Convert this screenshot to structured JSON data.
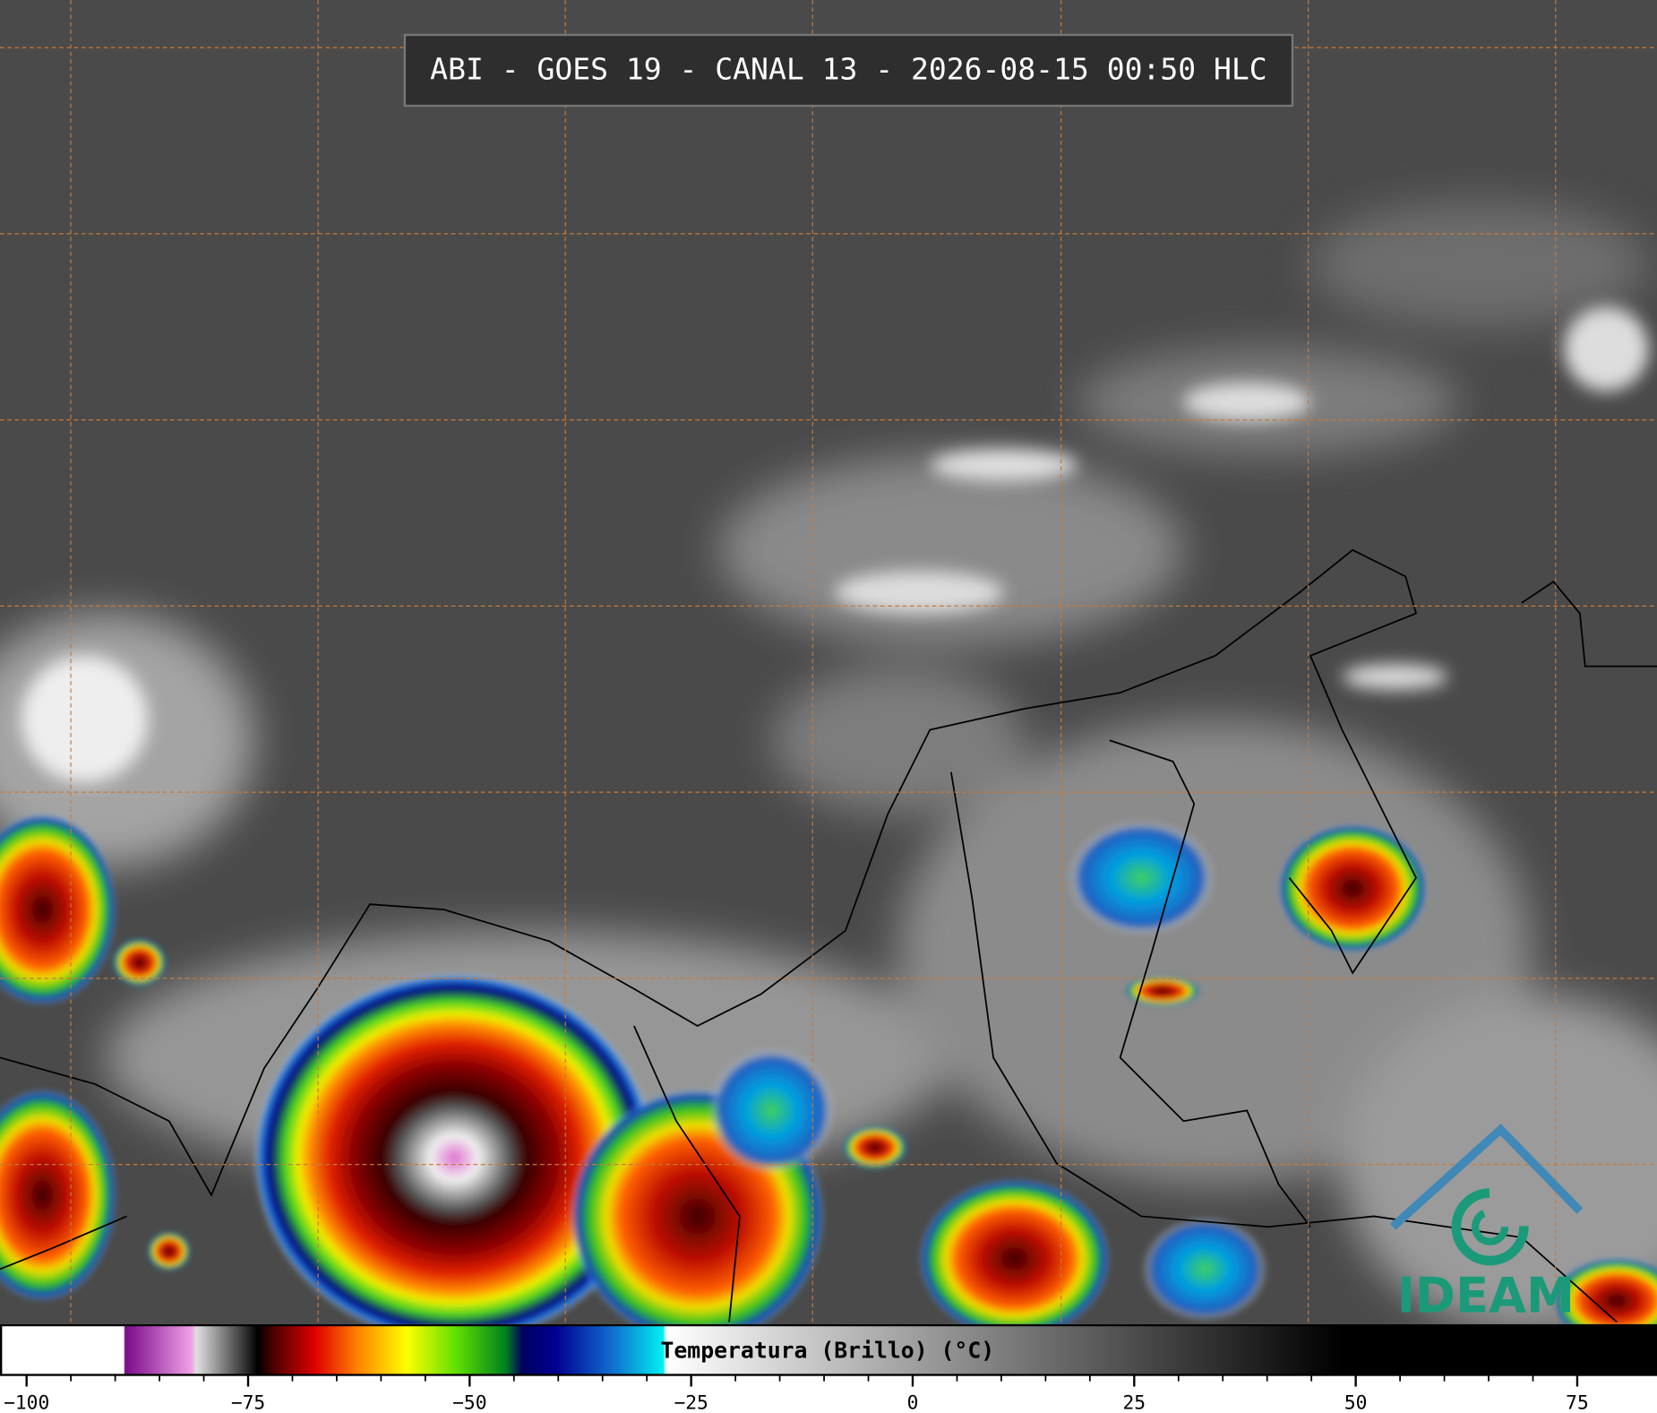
{
  "header": {
    "title": "ABI - GOES 19 - CANAL 13 - 2026-08-15 00:50 HLC"
  },
  "colorbar": {
    "label": "Temperatura (Brillo) (°C)",
    "lim": [
      -103,
      84
    ],
    "ticks": [
      {
        "value": -100,
        "label": "−100"
      },
      {
        "value": -75,
        "label": "−75"
      },
      {
        "value": -50,
        "label": "−50"
      },
      {
        "value": -25,
        "label": "−25"
      },
      0,
      25,
      50,
      75
    ]
  },
  "logo": {
    "text": "IDEAM"
  }
}
